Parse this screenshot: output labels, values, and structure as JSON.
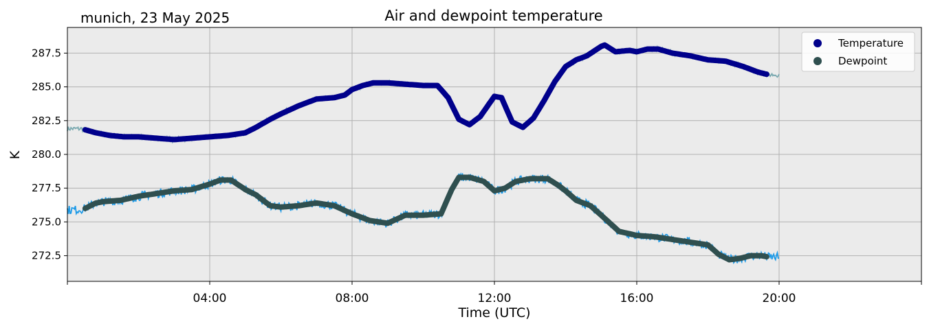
{
  "header": {
    "title": "Air and dewpoint temperature",
    "location_date": "munich, 23 May 2025"
  },
  "chart_data": {
    "type": "line",
    "title": "Air and dewpoint temperature",
    "subtitle": "munich, 23 May 2025",
    "xlabel": "Time (UTC)",
    "ylabel": "K",
    "xlim_hours": [
      0,
      24
    ],
    "ylim": [
      270.6,
      289.4
    ],
    "x_tick_labels": [
      "04:00",
      "08:00",
      "12:00",
      "16:00",
      "20:00"
    ],
    "x_tick_hours": [
      4,
      8,
      12,
      16,
      20
    ],
    "y_ticks": [
      272.5,
      275.0,
      277.5,
      280.0,
      282.5,
      285.0,
      287.5
    ],
    "y_tick_labels": [
      "272.5",
      "275.0",
      "277.5",
      "280.0",
      "282.5",
      "285.0",
      "287.5"
    ],
    "grid": true,
    "background": "#ebebeb",
    "legend_position": "top-right",
    "legend": [
      {
        "label": "Temperature",
        "color": "#00008b"
      },
      {
        "label": "Dewpoint",
        "color": "#2f4f4f"
      }
    ],
    "series": [
      {
        "name": "Temperature",
        "color": "#00008b",
        "raw_color": "#7aa9b0",
        "x_hours": [
          0,
          0.4,
          0.8,
          1.2,
          1.6,
          2.0,
          2.5,
          3.0,
          3.5,
          4.0,
          4.5,
          5.0,
          5.3,
          5.7,
          6.0,
          6.5,
          7.0,
          7.5,
          7.8,
          8.0,
          8.3,
          8.6,
          9.0,
          9.5,
          10.0,
          10.4,
          10.7,
          11.0,
          11.3,
          11.6,
          12.0,
          12.2,
          12.5,
          12.8,
          13.1,
          13.4,
          13.7,
          14.0,
          14.3,
          14.6,
          15.0,
          15.1,
          15.4,
          15.8,
          16.0,
          16.3,
          16.6,
          17.0,
          17.5,
          18.0,
          18.5,
          19.0,
          19.4,
          19.7
        ],
        "values": [
          281.9,
          281.9,
          281.6,
          281.4,
          281.3,
          281.3,
          281.2,
          281.1,
          281.2,
          281.3,
          281.4,
          281.6,
          282.0,
          282.6,
          283.0,
          283.6,
          284.1,
          284.2,
          284.4,
          284.8,
          285.1,
          285.3,
          285.3,
          285.2,
          285.1,
          285.1,
          284.2,
          282.6,
          282.2,
          282.8,
          284.3,
          284.2,
          282.4,
          282.0,
          282.7,
          284.0,
          285.4,
          286.5,
          287.0,
          287.3,
          288.0,
          288.1,
          287.6,
          287.7,
          287.6,
          287.8,
          287.8,
          287.5,
          287.3,
          287.0,
          286.9,
          286.5,
          286.1,
          285.9
        ]
      },
      {
        "name": "Dewpoint",
        "color": "#2f4f4f",
        "raw_color": "#1e9be8",
        "x_hours": [
          0,
          0.3,
          0.5,
          0.8,
          1.0,
          1.5,
          2.0,
          2.5,
          3.0,
          3.5,
          4.0,
          4.3,
          4.6,
          5.0,
          5.3,
          5.7,
          6.0,
          6.5,
          7.0,
          7.5,
          8.0,
          8.5,
          9.0,
          9.5,
          10.0,
          10.5,
          10.8,
          11.0,
          11.3,
          11.7,
          12.0,
          12.3,
          12.6,
          13.0,
          13.5,
          13.8,
          14.0,
          14.3,
          14.7,
          15.0,
          15.5,
          16.0,
          16.5,
          17.0,
          17.5,
          18.0,
          18.3,
          18.6,
          18.9,
          19.2,
          19.5,
          19.7
        ],
        "values": [
          275.9,
          275.9,
          276.0,
          276.4,
          276.5,
          276.6,
          276.9,
          277.1,
          277.3,
          277.4,
          277.8,
          278.1,
          278.1,
          277.4,
          277.0,
          276.2,
          276.1,
          276.2,
          276.4,
          276.2,
          275.6,
          275.1,
          274.9,
          275.5,
          275.5,
          275.6,
          277.4,
          278.3,
          278.3,
          278.0,
          277.3,
          277.5,
          278.0,
          278.2,
          278.2,
          277.7,
          277.3,
          276.6,
          276.2,
          275.5,
          274.3,
          274.0,
          273.9,
          273.7,
          273.5,
          273.3,
          272.6,
          272.2,
          272.3,
          272.5,
          272.5,
          272.4
        ]
      }
    ]
  }
}
